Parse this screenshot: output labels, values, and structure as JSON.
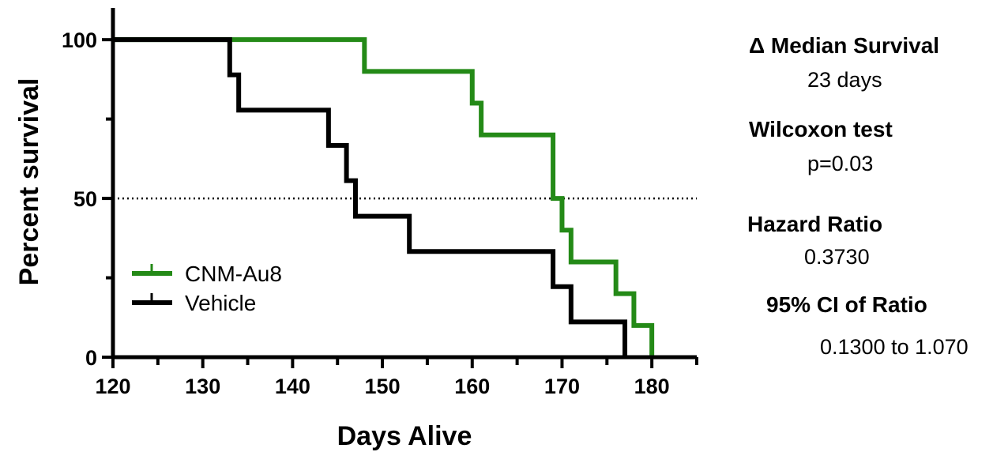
{
  "chart_data": {
    "type": "line",
    "subtype": "kaplan-meier-step",
    "xlabel": "Days Alive",
    "ylabel": "Percent survival",
    "xlim": [
      120,
      185
    ],
    "ylim": [
      0,
      110
    ],
    "x_ticks": [
      120,
      130,
      140,
      150,
      160,
      170,
      180
    ],
    "x_minor_step": 5,
    "y_ticks": [
      0,
      50,
      100
    ],
    "reference_line": {
      "y": 50,
      "style": "dotted"
    },
    "legend_placement": "lower-left",
    "series": [
      {
        "name": "CNM-Au8",
        "color": "#248a17",
        "x": [
          120,
          148,
          160,
          161,
          169,
          170,
          171,
          176,
          178,
          180
        ],
        "y": [
          100,
          90,
          80,
          70,
          50,
          40,
          30,
          20,
          10,
          0
        ]
      },
      {
        "name": "Vehicle",
        "color": "#000000",
        "x": [
          120,
          133,
          134,
          144,
          146,
          147,
          153,
          169,
          171,
          177
        ],
        "y": [
          100,
          88.9,
          77.8,
          66.7,
          55.6,
          44.4,
          33.3,
          22.2,
          11.1,
          0
        ]
      }
    ]
  },
  "stats": {
    "median_label": "Δ Median Survival",
    "median_value": "23 days",
    "test_label": "Wilcoxon test",
    "test_value": "p=0.03",
    "hr_label": "Hazard Ratio",
    "hr_value": "0.3730",
    "ci_label": "95% CI of Ratio",
    "ci_value": "0.1300 to 1.070"
  }
}
